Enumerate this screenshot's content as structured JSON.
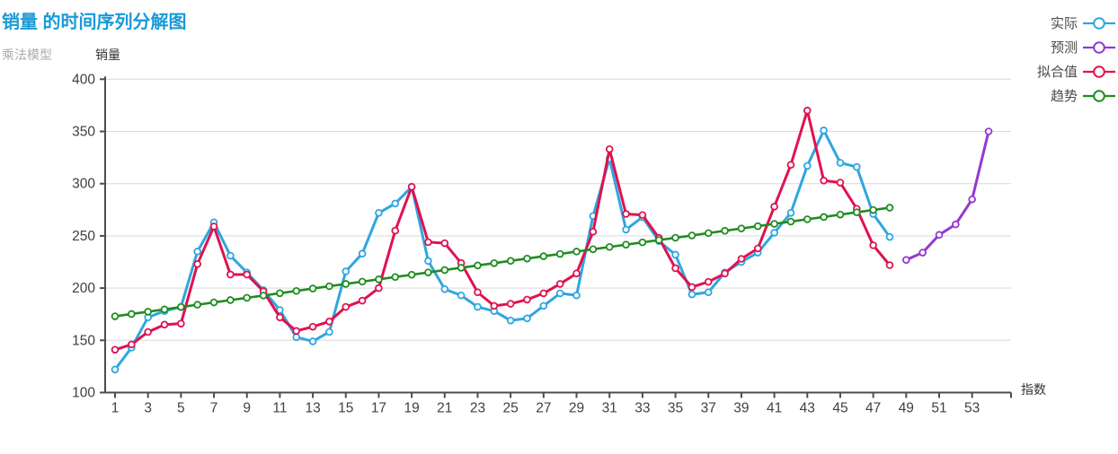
{
  "header": {
    "title": "销量 的时间序列分解图",
    "subtitle": "乘法模型"
  },
  "chart_data": {
    "type": "line",
    "title": "销量 的时间序列分解图",
    "subtitle": "乘法模型",
    "xlabel": "指数",
    "ylabel": "销量",
    "ylim": [
      100,
      400
    ],
    "yticks": [
      400,
      350,
      300,
      250,
      200,
      150,
      100
    ],
    "xticks": [
      1,
      3,
      5,
      7,
      9,
      11,
      13,
      15,
      17,
      19,
      21,
      23,
      25,
      27,
      29,
      31,
      33,
      35,
      37,
      39,
      41,
      43,
      45,
      47,
      49,
      51,
      53
    ],
    "xlim": [
      1,
      54
    ],
    "grid": "horizontal",
    "grid_color": "#d9d9d9",
    "axis_color": "#4d4d4d",
    "tick_label_color": "#404040",
    "legend_position": "top-right",
    "marker": "open-circle",
    "series": [
      {
        "key": "actual",
        "name": "实际",
        "color": "#2fa6e0",
        "x_start": 1,
        "values": [
          122,
          143,
          172,
          178,
          182,
          235,
          263,
          231,
          215,
          198,
          179,
          153,
          149,
          158,
          216,
          233,
          272,
          281,
          297,
          226,
          199,
          193,
          182,
          178,
          169,
          171,
          183,
          195,
          193,
          269,
          324,
          256,
          268,
          245,
          232,
          194,
          196,
          215,
          225,
          234,
          253,
          272,
          317,
          351,
          320,
          316,
          271,
          249
        ]
      },
      {
        "key": "forecast",
        "name": "预测",
        "color": "#9438d4",
        "x_start": 49,
        "values": [
          227,
          234,
          251,
          261,
          285,
          350
        ]
      },
      {
        "key": "fitted",
        "name": "拟合值",
        "color": "#e0124f",
        "x_start": 1,
        "values": [
          141,
          146,
          158,
          165,
          166,
          223,
          259,
          213,
          213,
          197,
          172,
          159,
          163,
          168,
          182,
          188,
          200,
          255,
          297,
          244,
          243,
          224,
          196,
          183,
          185,
          189,
          195,
          204,
          214,
          254,
          333,
          271,
          270,
          248,
          219,
          201,
          206,
          214,
          228,
          238,
          278,
          318,
          370,
          303,
          301,
          276,
          241,
          222
        ]
      },
      {
        "key": "trend",
        "name": "趋势",
        "color": "#1f8c21",
        "x_start": 1,
        "values": [
          173,
          175.2,
          177.4,
          179.6,
          181.9,
          184.1,
          186.3,
          188.5,
          190.7,
          192.9,
          195.1,
          197.3,
          199.6,
          201.8,
          204,
          206.2,
          208.4,
          210.6,
          212.8,
          215,
          217.3,
          219.5,
          221.7,
          223.9,
          226.1,
          228.3,
          230.5,
          232.7,
          235,
          237.2,
          239.4,
          241.6,
          243.8,
          246,
          248.2,
          250.4,
          252.7,
          254.9,
          257.1,
          259.3,
          261.5,
          263.7,
          265.9,
          268.1,
          270.4,
          272.6,
          274.8,
          277
        ]
      }
    ]
  }
}
